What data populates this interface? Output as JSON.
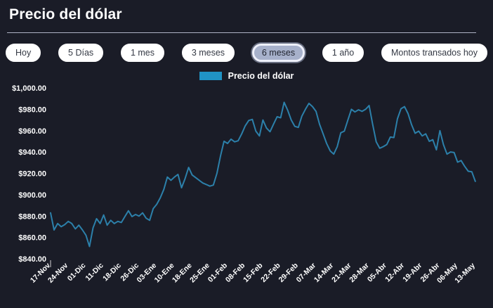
{
  "header": {
    "title": "Precio del dólar"
  },
  "toolbar": {
    "buttons": [
      "Hoy",
      "5 Días",
      "1 mes",
      "3 meses",
      "6 meses",
      "1 año",
      "Montos transados hoy"
    ],
    "selected": "6 meses"
  },
  "legend": {
    "label": "Precio del dólar",
    "swatch_color": "#2093c5"
  },
  "chart_data": {
    "type": "line",
    "title": "Precio del dólar",
    "series_name": "Precio del dólar",
    "line_color": "#2c80aa",
    "legend_position": "top-center",
    "grid": false,
    "ylim": [
      840,
      1000
    ],
    "y_tick_labels": [
      "$1,000.00",
      "$980.00",
      "$960.00",
      "$940.00",
      "$920.00",
      "$900.00",
      "$880.00",
      "$860.00",
      "$840.00"
    ],
    "y_tick_values": [
      1000,
      980,
      960,
      940,
      920,
      900,
      880,
      860,
      840
    ],
    "x_tick_labels": [
      "17-Nov",
      "24-Nov",
      "01-Dic",
      "11-Dic",
      "18-Dic",
      "26-Dic",
      "03-Ene",
      "10-Ene",
      "18-Ene",
      "25-Ene",
      "01-Feb",
      "08-Feb",
      "15-Feb",
      "22-Feb",
      "29-Feb",
      "07-Mar",
      "14-Mar",
      "21-Mar",
      "28-Mar",
      "05-Abr",
      "12-Abr",
      "19-Abr",
      "26-Abr",
      "06-May",
      "13-May"
    ],
    "points_per_tick": 5,
    "values": [
      883,
      867,
      873,
      870,
      872,
      875,
      873,
      868,
      871.5,
      867,
      862,
      851.5,
      869,
      877.5,
      873,
      881,
      871.5,
      876,
      873,
      875,
      874,
      879.5,
      885,
      879.5,
      881.5,
      880,
      883,
      878,
      876,
      887,
      891,
      897,
      905,
      916.5,
      913.5,
      916.5,
      919,
      906.5,
      915,
      925.5,
      918.5,
      916,
      913.5,
      911,
      909.5,
      908,
      909,
      920,
      936,
      950,
      948,
      952,
      949.5,
      950.5,
      957,
      964.5,
      969.5,
      970.5,
      959.5,
      955,
      970,
      962.5,
      959,
      966,
      973,
      972,
      986.5,
      979,
      970,
      964,
      963,
      973.5,
      980,
      985.5,
      982.5,
      978,
      966,
      957,
      948,
      941,
      938,
      945,
      958,
      959.5,
      970,
      980,
      977.5,
      979.5,
      978,
      980,
      983.5,
      966,
      949.5,
      943.5,
      945,
      947,
      954,
      953.5,
      971,
      980.5,
      982.5,
      976,
      965.5,
      957.5,
      959.5,
      955,
      957,
      950,
      951.5,
      942,
      960,
      947,
      938,
      940,
      939.5,
      930.5,
      932,
      926.5,
      922,
      921.5,
      912.5
    ]
  }
}
